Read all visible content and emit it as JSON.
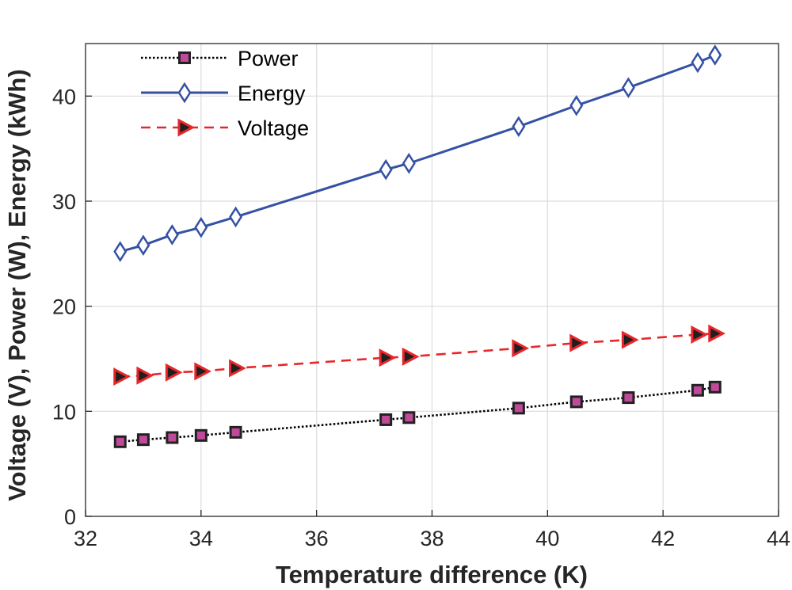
{
  "chart_data": {
    "type": "line",
    "title": "",
    "xlabel": "Temperature difference (K)",
    "ylabel": "Voltage (V), Power (W), Energy (kWh)",
    "xlim": [
      32,
      44
    ],
    "ylim": [
      0,
      45
    ],
    "xticks": [
      32,
      34,
      36,
      38,
      40,
      42,
      44
    ],
    "yticks": [
      0,
      10,
      20,
      30,
      40
    ],
    "grid": true,
    "legend_position": "top-left",
    "x": [
      32.6,
      33.0,
      33.5,
      34.0,
      34.6,
      37.2,
      37.6,
      39.5,
      40.5,
      41.4,
      42.6,
      42.9
    ],
    "series": [
      {
        "name": "Power",
        "style": "dotted",
        "marker": "square",
        "color": "#000000",
        "marker_fill": "#c04a9a",
        "values": [
          7.1,
          7.3,
          7.5,
          7.7,
          8.0,
          9.2,
          9.4,
          10.3,
          10.9,
          11.3,
          12.0,
          12.3
        ]
      },
      {
        "name": "Energy",
        "style": "solid",
        "marker": "diamond",
        "color": "#3551a3",
        "marker_fill": "#ffffff",
        "values": [
          25.2,
          25.8,
          26.8,
          27.5,
          28.5,
          33.0,
          33.6,
          37.1,
          39.1,
          40.8,
          43.2,
          43.9
        ]
      },
      {
        "name": "Voltage",
        "style": "dashed",
        "marker": "triangle-right",
        "color": "#e8262b",
        "marker_fill": "#1f1f1f",
        "values": [
          13.3,
          13.4,
          13.7,
          13.8,
          14.1,
          15.1,
          15.2,
          16.0,
          16.5,
          16.8,
          17.3,
          17.4
        ]
      }
    ]
  }
}
